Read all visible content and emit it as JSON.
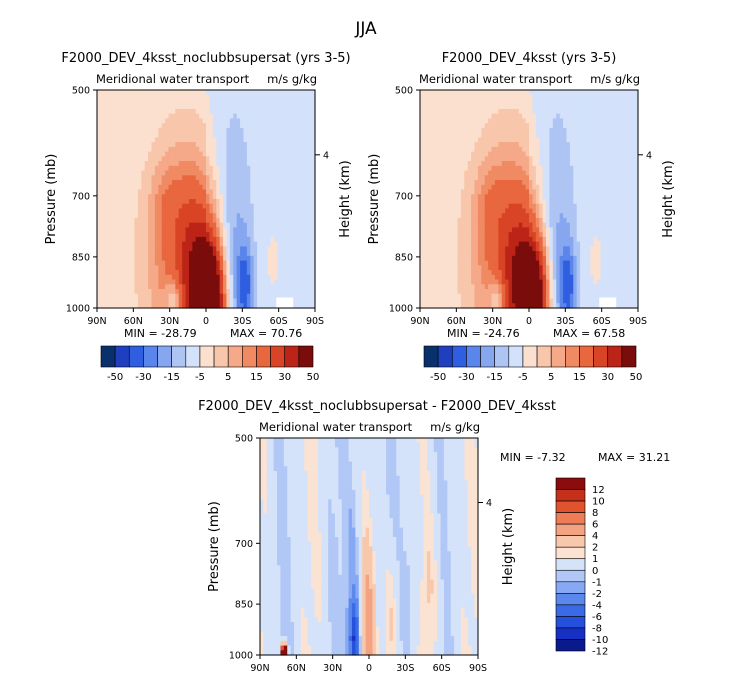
{
  "figure": {
    "super_title": "JJA"
  },
  "palettes": {
    "full": [
      "#08306b",
      "#1f3fbf",
      "#2f5fe0",
      "#5a85ea",
      "#86a7ef",
      "#aec4f3",
      "#d3e2fa",
      "#fbe0cf",
      "#f8c6aa",
      "#f5a988",
      "#f08a62",
      "#e9673f",
      "#d84425",
      "#bb2417",
      "#7a0c0c"
    ],
    "diff": [
      "#0a1a8c",
      "#1630c4",
      "#2450dc",
      "#3a6ae6",
      "#5c88ee",
      "#87a8f2",
      "#b1c8f6",
      "#d5e3fa",
      "#fbe3d3",
      "#f8c8ac",
      "#f4a382",
      "#ee7c56",
      "#e0532f",
      "#c4301a",
      "#8a0c0c"
    ]
  },
  "chart_data": [
    {
      "type": "heatmap",
      "title": "F2000_DEV_4ksst_noclubbsupersat (yrs 3-5)",
      "subtitle_left": "Meridional water transport",
      "subtitle_right": "m/s g/kg",
      "xlabel": "",
      "ylabel": "Pressure (mb)",
      "ylabel_right": "Height (km)",
      "x_ticks": [
        "90N",
        "60N",
        "30N",
        "0",
        "30S",
        "60S",
        "90S"
      ],
      "y_ticks": [
        "500",
        "700",
        "850",
        "1000"
      ],
      "y_right_ticks": [
        "4"
      ],
      "min_label": "MIN = -28.79",
      "max_label": "MAX = 70.76",
      "colorbar_labels": [
        "-50",
        "-30",
        "-15",
        "-5",
        "5",
        "15",
        "30",
        "50"
      ],
      "lat_range": [
        90,
        -90
      ],
      "pressure_range": [
        500,
        1000
      ]
    },
    {
      "type": "heatmap",
      "title": "F2000_DEV_4ksst (yrs 3-5)",
      "subtitle_left": "Meridional water transport",
      "subtitle_right": "m/s g/kg",
      "xlabel": "",
      "ylabel": "Pressure (mb)",
      "ylabel_right": "Height (km)",
      "x_ticks": [
        "90N",
        "60N",
        "30N",
        "0",
        "30S",
        "60S",
        "90S"
      ],
      "y_ticks": [
        "500",
        "700",
        "850",
        "1000"
      ],
      "y_right_ticks": [
        "4"
      ],
      "min_label": "MIN = -24.76",
      "max_label": "MAX = 67.58",
      "colorbar_labels": [
        "-50",
        "-30",
        "-15",
        "-5",
        "5",
        "15",
        "30",
        "50"
      ],
      "lat_range": [
        90,
        -90
      ],
      "pressure_range": [
        500,
        1000
      ]
    },
    {
      "type": "heatmap",
      "title": "F2000_DEV_4ksst_noclubbsupersat - F2000_DEV_4ksst",
      "subtitle_left": "Meridional water transport",
      "subtitle_right": "m/s g/kg",
      "xlabel": "",
      "ylabel": "Pressure (mb)",
      "ylabel_right": "Height (km)",
      "x_ticks": [
        "90N",
        "60N",
        "30N",
        "0",
        "30S",
        "60S",
        "90S"
      ],
      "y_ticks": [
        "500",
        "700",
        "850",
        "1000"
      ],
      "y_right_ticks": [
        "4"
      ],
      "min_label": "MIN = -7.32",
      "max_label": "MAX = 31.21",
      "colorbar_labels": [
        "12",
        "10",
        "8",
        "6",
        "4",
        "2",
        "1",
        "0",
        "-1",
        "-2",
        "-4",
        "-6",
        "-8",
        "-10",
        "-12"
      ],
      "lat_range": [
        90,
        -90
      ],
      "pressure_range": [
        500,
        1000
      ]
    }
  ]
}
